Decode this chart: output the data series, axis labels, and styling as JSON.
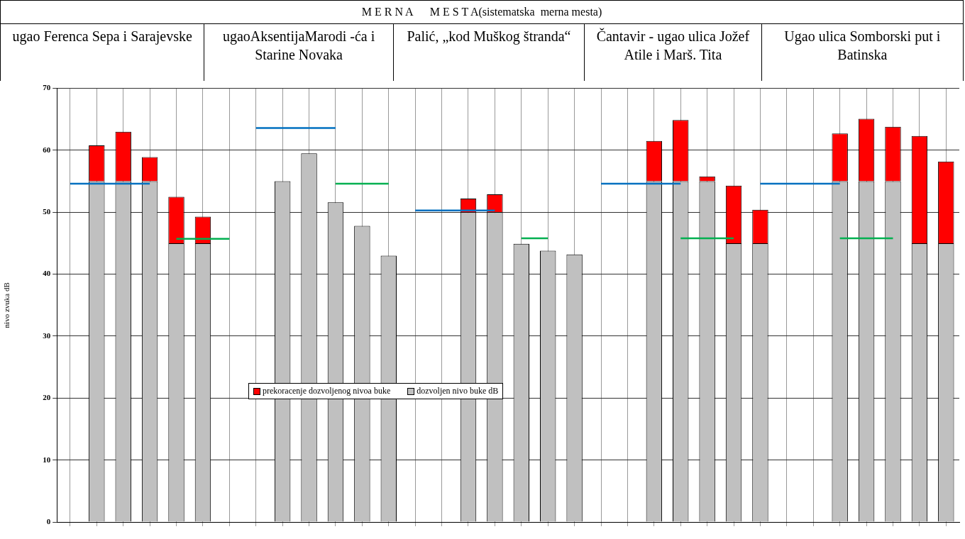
{
  "chart_data": {
    "type": "bar",
    "title": "M E R N A      M E S T A(sistematska  merna mesta)",
    "annotations": [
      "ugao Ferenca Sepa i Sarajevske",
      "ugaoAksentijaMarodi -ća i Starine Novaka",
      "Palić, „kod Muškog štranda“",
      "Čantavir - ugao ulica Jožef Atile i Marš. Tita",
      "Ugao ulica Somborski put i Batinska"
    ],
    "ylabel": "nivo zvuka dB",
    "categories": [
      null,
      null,
      null,
      null,
      null,
      null,
      null,
      null,
      null,
      null,
      null,
      null,
      null,
      null,
      null,
      null,
      null,
      null,
      null,
      null,
      null,
      null,
      null,
      null,
      null,
      null,
      null,
      null,
      null,
      null,
      null,
      null,
      null,
      null
    ],
    "stacked": true,
    "ylim": [
      0,
      70
    ],
    "yticks": [
      0,
      10,
      20,
      30,
      40,
      50,
      60,
      70
    ],
    "grid": true,
    "legend": "bottom",
    "tick_labels": "y",
    "marker": "none",
    "series": [
      {
        "name": "dozvoljen nivo buke dB",
        "color": "#c0c0c0",
        "values": [
          null,
          55,
          55,
          55,
          45,
          45,
          null,
          null,
          55,
          59.5,
          51.6,
          47.8,
          43,
          null,
          null,
          50,
          50,
          44.9,
          43.8,
          43.2,
          null,
          null,
          55,
          55,
          55,
          45,
          45,
          null,
          null,
          55,
          55,
          55,
          45,
          45
        ]
      },
      {
        "name": "prekoracenje dozvoljenog nivoa buke",
        "color": "#ff0000",
        "values": [
          null,
          5.8,
          8,
          3.9,
          7.5,
          4.3,
          null,
          null,
          null,
          null,
          null,
          null,
          null,
          null,
          null,
          2.2,
          2.9,
          null,
          null,
          null,
          null,
          null,
          6.5,
          9.9,
          0.8,
          9.3,
          5.4,
          null,
          null,
          7.7,
          10.1,
          8.8,
          17.3,
          13.2
        ]
      },
      {
        "type": "line",
        "color": "#0070c0",
        "values": [
          54.6,
          54.6,
          54.6,
          54.6,
          null,
          null,
          null,
          63.6,
          63.6,
          63.6,
          63.6,
          null,
          null,
          50.3,
          50.3,
          50.3,
          50.3,
          null,
          null,
          null,
          54.6,
          54.6,
          54.6,
          54.6,
          null,
          null,
          54.6,
          54.6,
          54.6,
          54.6,
          null,
          null,
          null,
          null
        ]
      },
      {
        "type": "line",
        "color": "#00b050",
        "values": [
          null,
          null,
          null,
          null,
          45.7,
          45.7,
          45.7,
          null,
          null,
          null,
          54.6,
          54.6,
          54.6,
          null,
          null,
          null,
          null,
          45.8,
          45.8,
          null,
          null,
          null,
          null,
          45.8,
          45.8,
          45.8,
          null,
          null,
          null,
          45.8,
          45.8,
          45.8,
          null,
          null
        ]
      }
    ]
  }
}
